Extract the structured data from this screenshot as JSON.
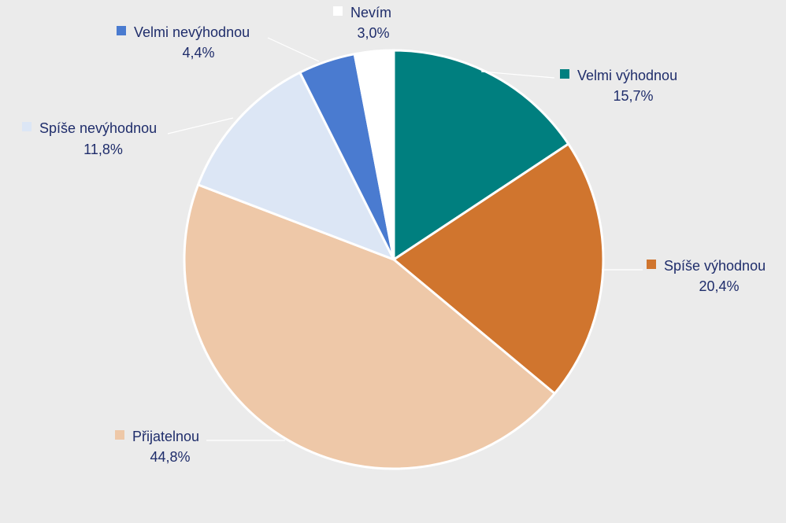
{
  "chart_data": {
    "type": "pie",
    "title": "",
    "start_angle_deg": 0,
    "direction": "clockwise",
    "slice_border_color": "#ffffff",
    "label_color": "#1f2d6b",
    "leader_line_color": "#ffffff",
    "background_color": "#ebebeb",
    "slices": [
      {
        "name": "Velmi výhodnou",
        "value": 15.7,
        "label": "15,7%",
        "color": "#007f7f"
      },
      {
        "name": "Spíše výhodnou",
        "value": 20.4,
        "label": "20,4%",
        "color": "#d0752e"
      },
      {
        "name": "Přijatelnou",
        "value": 44.8,
        "label": "44,8%",
        "color": "#eec8a8"
      },
      {
        "name": "Spíše nevýhodnou",
        "value": 11.8,
        "label": "11,8%",
        "color": "#dce6f5"
      },
      {
        "name": "Velmi nevýhodnou",
        "value": 4.4,
        "label": "4,4%",
        "color": "#4a7bd0"
      },
      {
        "name": "Nevím",
        "value": 3.0,
        "label": "3,0%",
        "color": "#ffffff"
      }
    ]
  }
}
